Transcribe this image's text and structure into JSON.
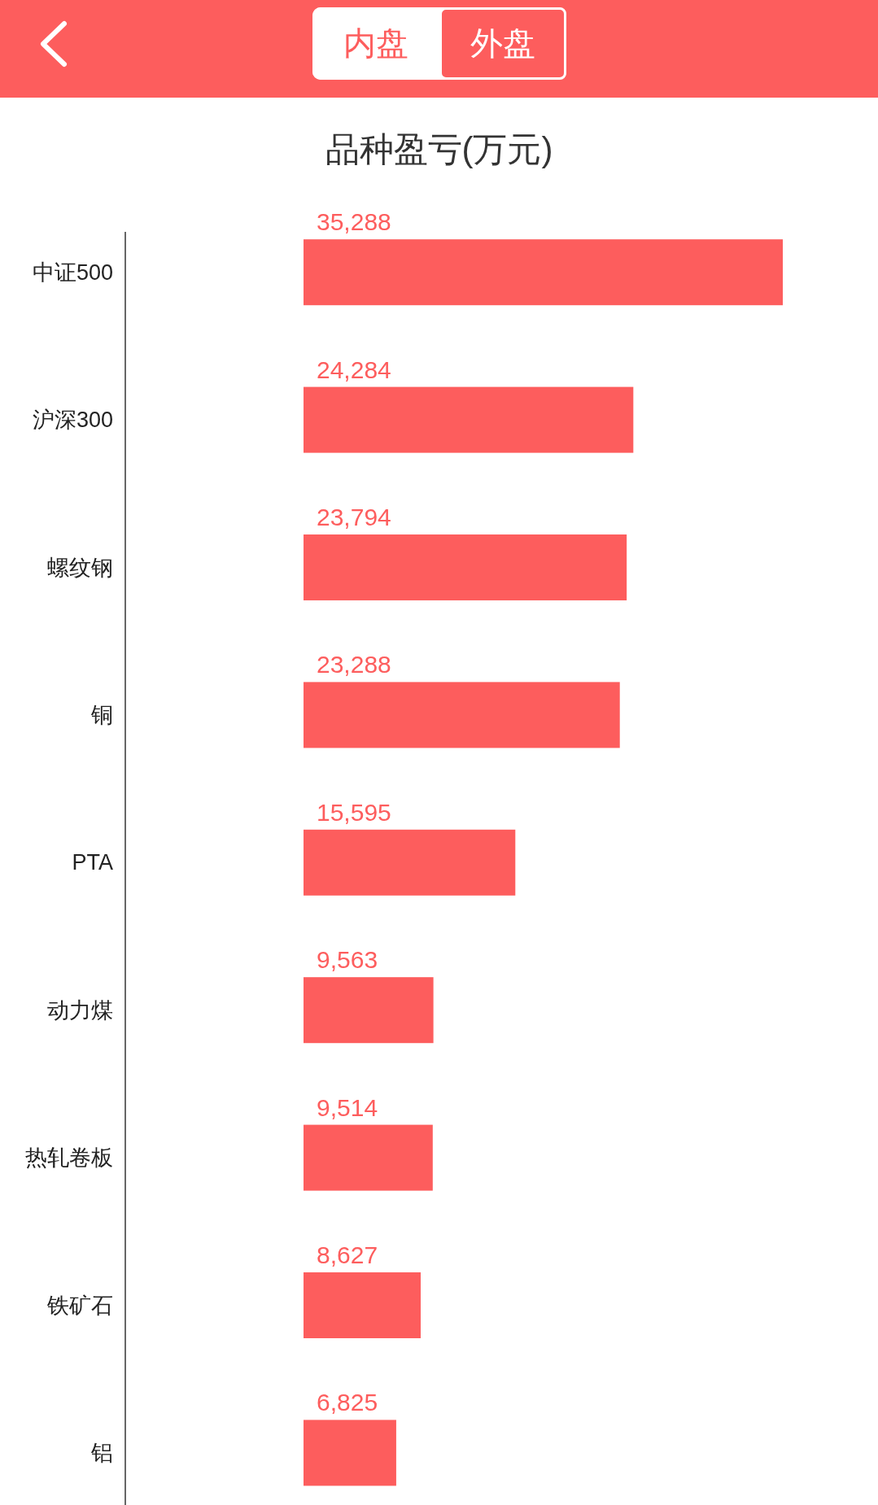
{
  "chart_data": {
    "type": "bar",
    "orientation": "horizontal",
    "title": "品种盈亏(万元)",
    "categories": [
      "中证500",
      "沪深300",
      "螺纹钢",
      "铜",
      "PTA",
      "动力煤",
      "热轧卷板",
      "铁矿石",
      "铝"
    ],
    "values": [
      35288,
      24284,
      23794,
      23288,
      15595,
      9563,
      9514,
      8627,
      6825
    ],
    "value_labels": [
      "35,288",
      "24,284",
      "23,794",
      "23,288",
      "15,595",
      "9,563",
      "9,514",
      "8,627",
      "6,825"
    ],
    "color": "#fd5d5d",
    "annotations": [
      "内盘",
      "外盘"
    ]
  }
}
